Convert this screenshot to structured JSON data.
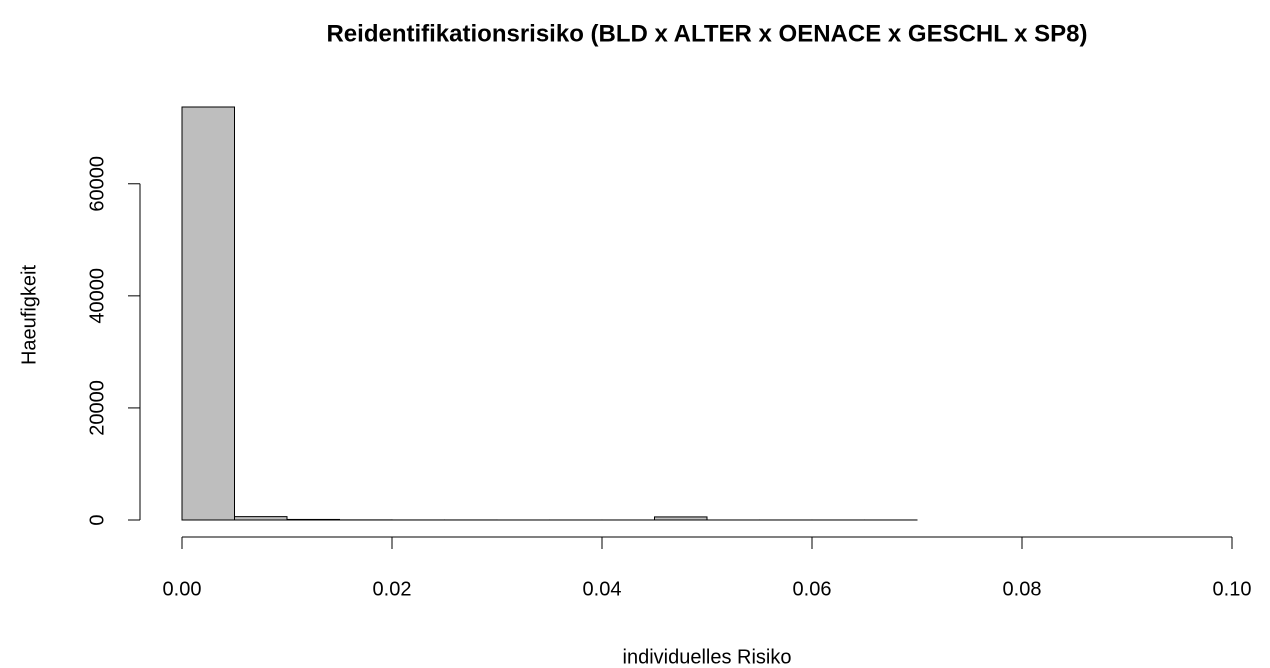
{
  "chart_data": {
    "type": "histogram",
    "title": "Reidentifikationsrisiko (BLD x ALTER x OENACE x GESCHL x SP8)",
    "x_label": "individuelles Risiko",
    "y_label": "Haeufigkeit",
    "bins": [
      0,
      0.005,
      0.01,
      0.015,
      0.02,
      0.025,
      0.03,
      0.035,
      0.04,
      0.045,
      0.05,
      0.055,
      0.06,
      0.065,
      0.07,
      0.075,
      0.08,
      0.085,
      0.09,
      0.095,
      0.1
    ],
    "counts": [
      73700,
      600,
      100,
      20,
      10,
      10,
      5,
      5,
      5,
      550,
      5,
      5,
      5,
      5,
      0,
      0,
      0,
      0,
      0,
      0
    ],
    "color": "#bebebe",
    "xlim": [
      0,
      0.1
    ],
    "xticks": [
      {
        "value": 0,
        "label": "0.00"
      },
      {
        "value": 0.02,
        "label": "0.02"
      },
      {
        "value": 0.04,
        "label": "0.04"
      },
      {
        "value": 0.06,
        "label": "0.06"
      },
      {
        "value": 0.08,
        "label": "0.08"
      },
      {
        "value": 0.1,
        "label": "0.10"
      }
    ],
    "ylim": [
      0,
      73700
    ],
    "yticks": [
      0,
      20000,
      40000,
      60000
    ]
  }
}
